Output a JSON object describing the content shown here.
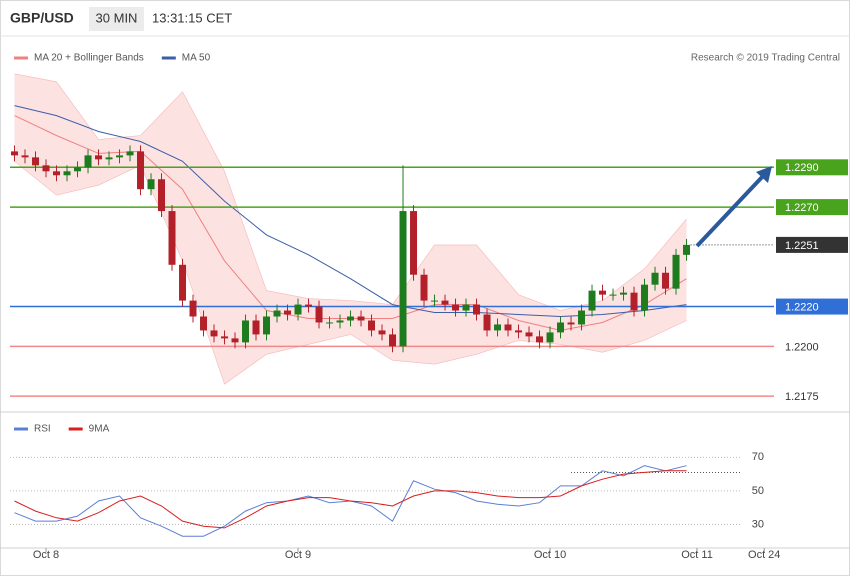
{
  "header": {
    "symbol": "GBP/USD",
    "interval": "30 MIN",
    "time": "13:31:15 CET"
  },
  "chart_data": [
    {
      "type": "candlestick",
      "copyright": "Research © 2019 Trading Central",
      "xlim": [
        -3.43,
        68.95
      ],
      "ylim": [
        1.2168,
        1.2354
      ],
      "candles": {
        "up_color": "#1e7b1e",
        "down_color": "#b3202a",
        "x": [
          -3,
          -2,
          -1,
          0,
          1,
          2,
          3,
          4,
          5,
          6,
          7,
          8,
          9,
          10,
          11,
          12,
          13,
          14,
          15,
          16,
          17,
          18,
          19,
          20,
          21,
          22,
          23,
          24,
          25,
          26,
          27,
          28,
          29,
          30,
          31,
          32,
          33,
          34,
          35,
          36,
          37,
          38,
          39,
          40,
          41,
          42,
          43,
          44,
          45,
          46,
          47,
          48,
          49,
          50,
          51,
          52,
          53,
          54,
          55,
          56,
          57,
          58,
          59,
          60,
          61
        ],
        "open": [
          1.2298,
          1.2296,
          1.2295,
          1.2291,
          1.2288,
          1.2286,
          1.2288,
          1.229,
          1.2296,
          1.2294,
          1.2295,
          1.2296,
          1.2298,
          1.2279,
          1.2284,
          1.2268,
          1.2241,
          1.2223,
          1.2215,
          1.2208,
          1.2205,
          1.2204,
          1.2202,
          1.2213,
          1.2206,
          1.2215,
          1.2218,
          1.2216,
          1.2221,
          1.222,
          1.2212,
          1.2212,
          1.2213,
          1.2215,
          1.2213,
          1.2208,
          1.2206,
          1.22,
          1.2268,
          1.2236,
          1.2223,
          1.2223,
          1.2221,
          1.2218,
          1.2221,
          1.2216,
          1.2208,
          1.2211,
          1.2208,
          1.2207,
          1.2205,
          1.2202,
          1.2207,
          1.2212,
          1.2211,
          1.2218,
          1.2228,
          1.2226,
          1.2226,
          1.2227,
          1.2218,
          1.2231,
          1.2237,
          1.2229,
          1.2246
        ],
        "high": [
          1.2301,
          1.2299,
          1.2298,
          1.2294,
          1.2291,
          1.2291,
          1.2293,
          1.2299,
          1.2299,
          1.2298,
          1.2299,
          1.2301,
          1.2301,
          1.2287,
          1.2287,
          1.2271,
          1.2244,
          1.2226,
          1.2218,
          1.2211,
          1.2208,
          1.2207,
          1.2216,
          1.2216,
          1.2218,
          1.2221,
          1.2221,
          1.2224,
          1.2224,
          1.2223,
          1.2215,
          1.2216,
          1.2218,
          1.2218,
          1.2216,
          1.2211,
          1.2209,
          1.2291,
          1.2271,
          1.2239,
          1.2226,
          1.2226,
          1.2224,
          1.2224,
          1.2224,
          1.2219,
          1.2214,
          1.2214,
          1.2211,
          1.221,
          1.2208,
          1.221,
          1.2215,
          1.2215,
          1.2221,
          1.2231,
          1.2231,
          1.2229,
          1.223,
          1.223,
          1.2234,
          1.224,
          1.224,
          1.2249,
          1.2254
        ],
        "low": [
          1.2293,
          1.2292,
          1.2288,
          1.2285,
          1.2283,
          1.2283,
          1.2285,
          1.2287,
          1.2291,
          1.2291,
          1.2292,
          1.2293,
          1.2276,
          1.2276,
          1.2265,
          1.2238,
          1.222,
          1.2212,
          1.2205,
          1.2202,
          1.2201,
          1.2199,
          1.2199,
          1.2203,
          1.2203,
          1.2212,
          1.2213,
          1.2213,
          1.2217,
          1.2209,
          1.2209,
          1.2209,
          1.221,
          1.221,
          1.2205,
          1.2203,
          1.2197,
          1.2197,
          1.2233,
          1.222,
          1.222,
          1.2218,
          1.2215,
          1.2215,
          1.2213,
          1.2205,
          1.2205,
          1.2205,
          1.2204,
          1.2202,
          1.2199,
          1.2199,
          1.2204,
          1.2208,
          1.2208,
          1.2215,
          1.2223,
          1.2223,
          1.2223,
          1.2215,
          1.2215,
          1.2228,
          1.2226,
          1.2226,
          1.2243
        ],
        "close": [
          1.2296,
          1.2295,
          1.2291,
          1.2288,
          1.2286,
          1.2288,
          1.229,
          1.2296,
          1.2294,
          1.2295,
          1.2296,
          1.2298,
          1.2279,
          1.2284,
          1.2268,
          1.2241,
          1.2223,
          1.2215,
          1.2208,
          1.2205,
          1.2204,
          1.2202,
          1.2213,
          1.2206,
          1.2215,
          1.2218,
          1.2216,
          1.2221,
          1.222,
          1.2212,
          1.2212,
          1.2213,
          1.2215,
          1.2213,
          1.2208,
          1.2206,
          1.22,
          1.2268,
          1.2236,
          1.2223,
          1.2223,
          1.2221,
          1.2218,
          1.2221,
          1.2216,
          1.2208,
          1.2211,
          1.2208,
          1.2207,
          1.2205,
          1.2202,
          1.2207,
          1.2212,
          1.2211,
          1.2218,
          1.2228,
          1.2226,
          1.2226,
          1.2227,
          1.2218,
          1.2231,
          1.2237,
          1.2229,
          1.2246,
          1.2251
        ]
      },
      "series": [
        {
          "name": "MA 20 + Bollinger Bands",
          "color": "#f08080",
          "band_color": "#fde2e2",
          "x": [
            -3,
            1,
            5,
            9,
            13,
            17,
            21,
            25,
            29,
            33,
            37,
            41,
            45,
            49,
            53,
            57,
            61
          ],
          "values": [
            1.2316,
            1.2306,
            1.2297,
            1.2298,
            1.2279,
            1.2243,
            1.2218,
            1.2214,
            1.2214,
            1.2214,
            1.2221,
            1.2221,
            1.2213,
            1.2208,
            1.2212,
            1.2221,
            1.2234
          ],
          "upper": [
            1.2337,
            1.2333,
            1.2304,
            1.2306,
            1.2328,
            1.2288,
            1.2228,
            1.2224,
            1.2223,
            1.2221,
            1.2251,
            1.2251,
            1.2226,
            1.2218,
            1.2223,
            1.2239,
            1.2264
          ],
          "lower": [
            1.2293,
            1.2276,
            1.2281,
            1.2291,
            1.2243,
            1.2181,
            1.2196,
            1.2201,
            1.2206,
            1.2193,
            1.2191,
            1.2196,
            1.2203,
            1.2201,
            1.2197,
            1.2203,
            1.2213
          ]
        },
        {
          "name": "MA 50",
          "color": "#3b5ea8",
          "x": [
            -3,
            1,
            5,
            9,
            13,
            17,
            21,
            25,
            29,
            33,
            37,
            41,
            45,
            49,
            53,
            57,
            61
          ],
          "values": [
            1.2321,
            1.2316,
            1.2308,
            1.2303,
            1.2293,
            1.2273,
            1.2256,
            1.2246,
            1.2234,
            1.2221,
            1.2217,
            1.2217,
            1.2216,
            1.2215,
            1.2216,
            1.2218,
            1.2221
          ]
        }
      ],
      "levels": [
        {
          "value": 1.229,
          "label": "1.2290",
          "color": "#4aa31c"
        },
        {
          "value": 1.227,
          "label": "1.2270",
          "color": "#4aa31c"
        },
        {
          "value": 1.2251,
          "color": "#333333",
          "current": true
        },
        {
          "value": 1.222,
          "label": "1.2220",
          "color": "#2f6fd6"
        },
        {
          "value": 1.22,
          "label": "1.2200",
          "color": "#f08a8a"
        },
        {
          "value": 1.2175,
          "label": "1.2175",
          "color": "#f08a8a"
        }
      ]
    },
    {
      "type": "line",
      "xlim": [
        -3.43,
        68.95
      ],
      "ylim": [
        16,
        97
      ],
      "yticks": [
        30,
        50,
        70
      ],
      "xticks": [
        {
          "value": 0,
          "label": "Oct 8"
        },
        {
          "value": 24,
          "label": "Oct 9"
        },
        {
          "value": 48,
          "label": "Oct 10"
        },
        {
          "value": 62,
          "label": "Oct 11"
        },
        {
          "value": 68.4,
          "label": "Oct 24"
        }
      ],
      "reference": 61,
      "series": [
        {
          "name": "RSI",
          "color": "#5b7fd6",
          "x": [
            -3,
            -1,
            1,
            3,
            5,
            7,
            9,
            11,
            13,
            15,
            17,
            19,
            21,
            23,
            25,
            27,
            29,
            31,
            33,
            35,
            37,
            39,
            41,
            43,
            45,
            47,
            49,
            51,
            53,
            55,
            57,
            59,
            61
          ],
          "values": [
            37,
            32,
            32,
            35,
            44,
            47,
            34,
            29,
            23,
            23,
            29,
            38,
            43,
            44,
            47,
            43,
            44,
            41,
            32,
            56,
            51,
            49,
            44,
            42,
            41,
            43,
            53,
            53,
            62,
            59,
            65,
            62,
            65
          ]
        },
        {
          "name": "9MA",
          "color": "#d81e1e",
          "x": [
            -3,
            -1,
            1,
            3,
            5,
            7,
            9,
            11,
            13,
            15,
            17,
            19,
            21,
            23,
            25,
            27,
            29,
            31,
            33,
            35,
            37,
            39,
            41,
            43,
            45,
            47,
            49,
            51,
            53,
            55,
            57,
            59,
            61
          ],
          "values": [
            44,
            38,
            34,
            32,
            37,
            44,
            47,
            41,
            32,
            29,
            28,
            34,
            41,
            44,
            46,
            46,
            44,
            43,
            41,
            47,
            50,
            50,
            49,
            47,
            46,
            46,
            47,
            53,
            57,
            60,
            61,
            62,
            62
          ]
        }
      ]
    }
  ]
}
